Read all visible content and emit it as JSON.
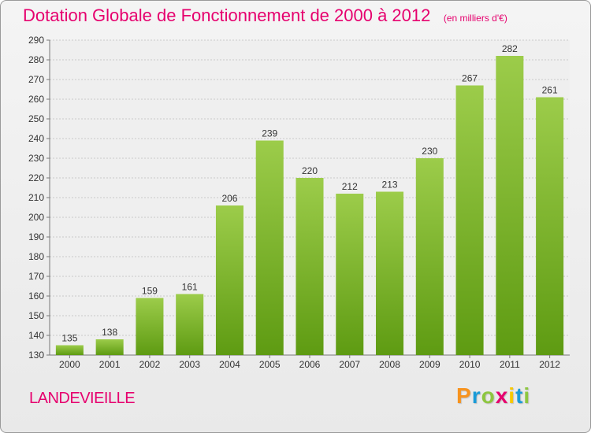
{
  "header": {
    "title": "Dotation Globale de Fonctionnement de 2000 à 2012",
    "unit": "(en milliers d'€)"
  },
  "footer": {
    "commune": "LANDEVIEILLE",
    "logo_letters": [
      {
        "char": "P",
        "color": "#f7931e"
      },
      {
        "char": "r",
        "color": "#1a9bd7"
      },
      {
        "char": "o",
        "color": "#8dc63f"
      },
      {
        "char": "x",
        "color": "#e6006e"
      },
      {
        "char": "i",
        "color": "#f7c800"
      },
      {
        "char": "t",
        "color": "#1a9bd7"
      },
      {
        "char": "i",
        "color": "#8dc63f"
      }
    ]
  },
  "colors": {
    "bar_top": "#9ccc4a",
    "bar_bottom": "#5e9b12",
    "grid": "#c8c8c8",
    "axis": "#777777"
  },
  "chart_data": {
    "type": "bar",
    "title": "Dotation Globale de Fonctionnement de 2000 à 2012",
    "subtitle": "(en milliers d'€)",
    "xlabel": "",
    "ylabel": "",
    "categories": [
      "2000",
      "2001",
      "2002",
      "2003",
      "2004",
      "2005",
      "2006",
      "2007",
      "2008",
      "2009",
      "2010",
      "2011",
      "2012"
    ],
    "values": [
      135,
      138,
      159,
      161,
      206,
      239,
      220,
      212,
      213,
      230,
      267,
      282,
      261
    ],
    "ylim": [
      130,
      290
    ],
    "yticks": [
      130,
      140,
      150,
      160,
      170,
      180,
      190,
      200,
      210,
      220,
      230,
      240,
      250,
      260,
      270,
      280,
      290
    ],
    "grid": true,
    "legend": "none"
  }
}
